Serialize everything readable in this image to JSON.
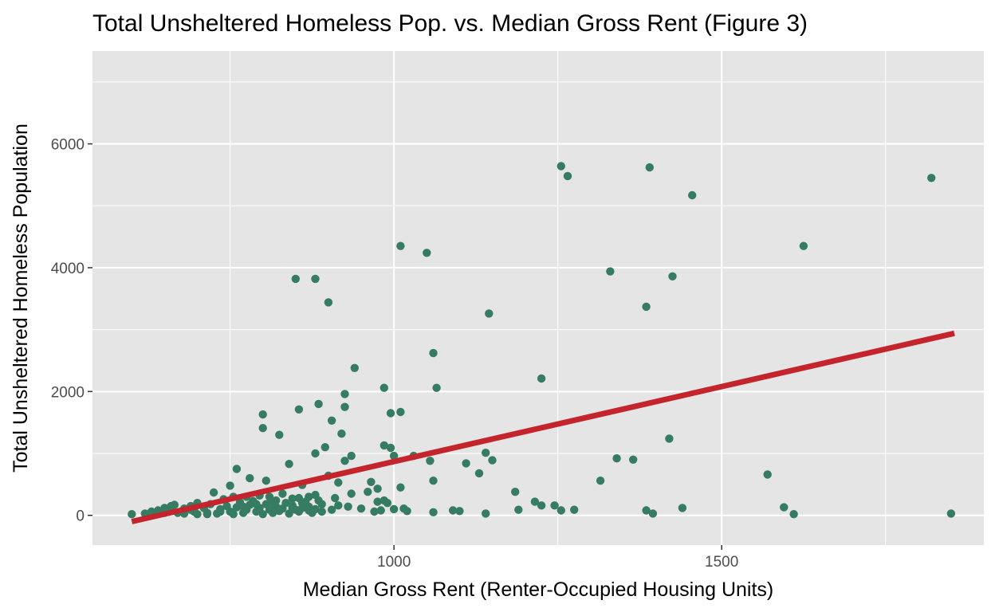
{
  "chart_data": {
    "type": "scatter",
    "title": "Total Unsheltered Homeless Pop. vs. Median Gross Rent (Figure 3)",
    "xlabel": "Median Gross Rent (Renter-Occupied Housing Units)",
    "ylabel": "Total Unsheltered Homeless Population",
    "xlim": [
      540,
      1900
    ],
    "ylim": [
      -480,
      7500
    ],
    "x_ticks": [
      1000,
      1500
    ],
    "x_tick_labels": [
      "1000",
      "1500"
    ],
    "y_ticks": [
      0,
      2000,
      4000,
      6000
    ],
    "y_tick_labels": [
      "0",
      "2000",
      "4000",
      "6000"
    ],
    "grid": true,
    "legend": "none",
    "colors": {
      "panel_background": "#e5e5e5",
      "grid": "#ffffff",
      "points": "#367c62",
      "trend_line": "#c4242c"
    },
    "series": [
      {
        "type": "scatter",
        "points": [
          [
            1255,
            5640
          ],
          [
            1265,
            5480
          ],
          [
            1390,
            5620
          ],
          [
            1455,
            5170
          ],
          [
            1820,
            5450
          ],
          [
            1010,
            4350
          ],
          [
            1050,
            4240
          ],
          [
            1625,
            4350
          ],
          [
            1330,
            3940
          ],
          [
            1425,
            3860
          ],
          [
            1385,
            3370
          ],
          [
            850,
            3820
          ],
          [
            880,
            3820
          ],
          [
            900,
            3440
          ],
          [
            1145,
            3260
          ],
          [
            1060,
            2620
          ],
          [
            940,
            2380
          ],
          [
            1065,
            2060
          ],
          [
            985,
            2060
          ],
          [
            1225,
            2210
          ],
          [
            925,
            1960
          ],
          [
            925,
            1750
          ],
          [
            885,
            1800
          ],
          [
            855,
            1710
          ],
          [
            800,
            1630
          ],
          [
            800,
            1410
          ],
          [
            905,
            1530
          ],
          [
            995,
            1650
          ],
          [
            1010,
            1670
          ],
          [
            825,
            1300
          ],
          [
            920,
            1320
          ],
          [
            985,
            1130
          ],
          [
            995,
            1090
          ],
          [
            895,
            1100
          ],
          [
            880,
            1000
          ],
          [
            1000,
            960
          ],
          [
            1030,
            960
          ],
          [
            1140,
            1010
          ],
          [
            1055,
            880
          ],
          [
            1110,
            840
          ],
          [
            1150,
            890
          ],
          [
            1340,
            920
          ],
          [
            1365,
            900
          ],
          [
            840,
            830
          ],
          [
            935,
            960
          ],
          [
            925,
            880
          ],
          [
            1420,
            1240
          ],
          [
            760,
            750
          ],
          [
            780,
            600
          ],
          [
            805,
            560
          ],
          [
            900,
            640
          ],
          [
            915,
            530
          ],
          [
            965,
            540
          ],
          [
            975,
            430
          ],
          [
            1010,
            450
          ],
          [
            1060,
            560
          ],
          [
            1130,
            680
          ],
          [
            1185,
            380
          ],
          [
            1315,
            560
          ],
          [
            1570,
            660
          ],
          [
            990,
            200
          ],
          [
            985,
            240
          ],
          [
            975,
            220
          ],
          [
            960,
            380
          ],
          [
            935,
            350
          ],
          [
            725,
            370
          ],
          [
            750,
            480
          ],
          [
            855,
            280
          ],
          [
            860,
            490
          ],
          [
            870,
            300
          ],
          [
            885,
            240
          ],
          [
            860,
            200
          ],
          [
            815,
            210
          ],
          [
            810,
            300
          ],
          [
            830,
            350
          ],
          [
            845,
            120
          ],
          [
            870,
            140
          ],
          [
            890,
            180
          ],
          [
            905,
            90
          ],
          [
            910,
            280
          ],
          [
            915,
            160
          ],
          [
            930,
            140
          ],
          [
            950,
            110
          ],
          [
            970,
            60
          ],
          [
            980,
            80
          ],
          [
            1000,
            100
          ],
          [
            1015,
            110
          ],
          [
            1020,
            70
          ],
          [
            1060,
            50
          ],
          [
            1090,
            80
          ],
          [
            1100,
            70
          ],
          [
            1140,
            30
          ],
          [
            1190,
            90
          ],
          [
            1215,
            220
          ],
          [
            1225,
            160
          ],
          [
            1245,
            160
          ],
          [
            1255,
            80
          ],
          [
            1275,
            90
          ],
          [
            1385,
            80
          ],
          [
            1395,
            30
          ],
          [
            1440,
            120
          ],
          [
            1595,
            130
          ],
          [
            1610,
            20
          ],
          [
            1850,
            30
          ],
          [
            600,
            20
          ],
          [
            620,
            30
          ],
          [
            630,
            60
          ],
          [
            640,
            80
          ],
          [
            650,
            120
          ],
          [
            660,
            90
          ],
          [
            665,
            170
          ],
          [
            670,
            40
          ],
          [
            680,
            110
          ],
          [
            690,
            150
          ],
          [
            695,
            60
          ],
          [
            700,
            20
          ],
          [
            710,
            120
          ],
          [
            715,
            40
          ],
          [
            720,
            180
          ],
          [
            730,
            30
          ],
          [
            735,
            100
          ],
          [
            745,
            150
          ],
          [
            750,
            60
          ],
          [
            755,
            20
          ],
          [
            760,
            130
          ],
          [
            765,
            210
          ],
          [
            770,
            40
          ],
          [
            775,
            90
          ],
          [
            780,
            170
          ],
          [
            785,
            230
          ],
          [
            790,
            60
          ],
          [
            795,
            120
          ],
          [
            800,
            20
          ],
          [
            805,
            180
          ],
          [
            810,
            90
          ],
          [
            815,
            40
          ],
          [
            820,
            140
          ],
          [
            825,
            70
          ],
          [
            830,
            110
          ],
          [
            835,
            200
          ],
          [
            840,
            30
          ],
          [
            845,
            160
          ],
          [
            850,
            90
          ],
          [
            855,
            60
          ],
          [
            860,
            120
          ],
          [
            870,
            80
          ],
          [
            875,
            40
          ],
          [
            880,
            100
          ],
          [
            890,
            60
          ],
          [
            740,
            260
          ],
          [
            775,
            300
          ],
          [
            795,
            320
          ],
          [
            820,
            240
          ],
          [
            845,
            270
          ],
          [
            865,
            220
          ],
          [
            880,
            330
          ],
          [
            695,
            90
          ],
          [
            715,
            20
          ],
          [
            735,
            60
          ],
          [
            755,
            300
          ],
          [
            770,
            140
          ],
          [
            790,
            180
          ],
          [
            700,
            200
          ],
          [
            680,
            30
          ],
          [
            660,
            150
          ],
          [
            690,
            90
          ],
          [
            650,
            40
          ]
        ]
      }
    ],
    "trend_line": {
      "x": [
        600,
        1855
      ],
      "y": [
        -100,
        2940
      ]
    }
  }
}
